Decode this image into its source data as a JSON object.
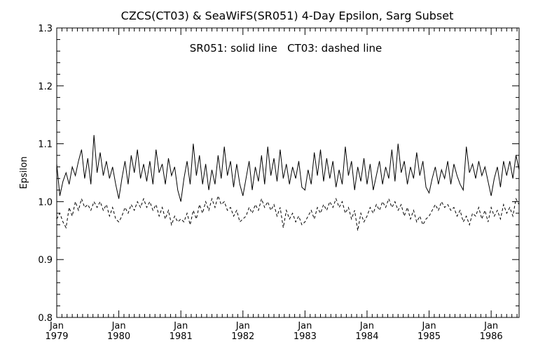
{
  "chart_data": {
    "type": "line",
    "title": "CZCS(CT03) & SeaWiFS(SR051) 4-Day Epsilon, Sarg Subset",
    "legend_text": "SR051: solid line   CT03: dashed line",
    "xlabel": "",
    "ylabel": "Epsilon",
    "xlim": [
      1979.0,
      1986.45
    ],
    "ylim": [
      0.8,
      1.3
    ],
    "y_ticks": [
      "0.8",
      "0.9",
      "1.0",
      "1.1",
      "1.2",
      "1.3"
    ],
    "x_ticks": [
      {
        "month": "Jan",
        "year": "1979"
      },
      {
        "month": "Jan",
        "year": "1980"
      },
      {
        "month": "Jan",
        "year": "1981"
      },
      {
        "month": "Jan",
        "year": "1982"
      },
      {
        "month": "Jan",
        "year": "1983"
      },
      {
        "month": "Jan",
        "year": "1984"
      },
      {
        "month": "Jan",
        "year": "1985"
      },
      {
        "month": "Jan",
        "year": "1986"
      }
    ],
    "x_tick_values": [
      1979,
      1980,
      1981,
      1982,
      1983,
      1984,
      1985,
      1986
    ],
    "grid": false,
    "series": [
      {
        "name": "SR051",
        "style": "solid",
        "x": [
          1979.0,
          1979.05,
          1979.1,
          1979.15,
          1979.2,
          1979.25,
          1979.3,
          1979.35,
          1979.4,
          1979.45,
          1979.5,
          1979.55,
          1979.6,
          1979.65,
          1979.7,
          1979.75,
          1979.8,
          1979.85,
          1979.9,
          1979.95,
          1980.0,
          1980.05,
          1980.1,
          1980.15,
          1980.2,
          1980.25,
          1980.3,
          1980.35,
          1980.4,
          1980.45,
          1980.5,
          1980.55,
          1980.6,
          1980.65,
          1980.7,
          1980.75,
          1980.8,
          1980.85,
          1980.9,
          1980.95,
          1981.0,
          1981.05,
          1981.1,
          1981.15,
          1981.2,
          1981.25,
          1981.3,
          1981.35,
          1981.4,
          1981.45,
          1981.5,
          1981.55,
          1981.6,
          1981.65,
          1981.7,
          1981.75,
          1981.8,
          1981.85,
          1981.9,
          1981.95,
          1982.0,
          1982.05,
          1982.1,
          1982.15,
          1982.2,
          1982.25,
          1982.3,
          1982.35,
          1982.4,
          1982.45,
          1982.5,
          1982.55,
          1982.6,
          1982.65,
          1982.7,
          1982.75,
          1982.8,
          1982.85,
          1982.9,
          1982.95,
          1983.0,
          1983.05,
          1983.1,
          1983.15,
          1983.2,
          1983.25,
          1983.3,
          1983.35,
          1983.4,
          1983.45,
          1983.5,
          1983.55,
          1983.6,
          1983.65,
          1983.7,
          1983.75,
          1983.8,
          1983.85,
          1983.9,
          1983.95,
          1984.0,
          1984.05,
          1984.1,
          1984.15,
          1984.2,
          1984.25,
          1984.3,
          1984.35,
          1984.4,
          1984.45,
          1984.5,
          1984.55,
          1984.6,
          1984.65,
          1984.7,
          1984.75,
          1984.8,
          1984.85,
          1984.9,
          1984.95,
          1985.0,
          1985.05,
          1985.1,
          1985.15,
          1985.2,
          1985.25,
          1985.3,
          1985.35,
          1985.4,
          1985.45,
          1985.5,
          1985.55,
          1985.6,
          1985.65,
          1985.7,
          1985.75,
          1985.8,
          1985.85,
          1985.9,
          1985.95,
          1986.0,
          1986.05,
          1986.1,
          1986.15,
          1986.2,
          1986.25,
          1986.3,
          1986.35,
          1986.4,
          1986.45
        ],
        "y": [
          1.065,
          1.01,
          1.035,
          1.05,
          1.03,
          1.06,
          1.045,
          1.07,
          1.09,
          1.04,
          1.075,
          1.03,
          1.115,
          1.05,
          1.085,
          1.045,
          1.07,
          1.04,
          1.06,
          1.03,
          1.005,
          1.04,
          1.07,
          1.03,
          1.08,
          1.05,
          1.09,
          1.04,
          1.065,
          1.035,
          1.07,
          1.03,
          1.09,
          1.05,
          1.065,
          1.03,
          1.075,
          1.045,
          1.06,
          1.02,
          1.0,
          1.04,
          1.07,
          1.03,
          1.1,
          1.045,
          1.08,
          1.03,
          1.065,
          1.02,
          1.055,
          1.03,
          1.08,
          1.04,
          1.095,
          1.045,
          1.07,
          1.025,
          1.065,
          1.03,
          1.01,
          1.04,
          1.07,
          1.02,
          1.06,
          1.035,
          1.08,
          1.03,
          1.095,
          1.045,
          1.075,
          1.035,
          1.09,
          1.04,
          1.065,
          1.03,
          1.06,
          1.04,
          1.07,
          1.025,
          1.02,
          1.055,
          1.03,
          1.085,
          1.045,
          1.09,
          1.035,
          1.075,
          1.04,
          1.07,
          1.025,
          1.055,
          1.03,
          1.095,
          1.045,
          1.07,
          1.02,
          1.06,
          1.035,
          1.075,
          1.03,
          1.065,
          1.02,
          1.045,
          1.07,
          1.03,
          1.06,
          1.04,
          1.09,
          1.035,
          1.1,
          1.05,
          1.07,
          1.03,
          1.06,
          1.04,
          1.085,
          1.045,
          1.07,
          1.025,
          1.015,
          1.04,
          1.06,
          1.03,
          1.055,
          1.04,
          1.07,
          1.03,
          1.065,
          1.045,
          1.03,
          1.02,
          1.095,
          1.05,
          1.065,
          1.04,
          1.07,
          1.045,
          1.06,
          1.035,
          1.01,
          1.04,
          1.06,
          1.025,
          1.07,
          1.045,
          1.07,
          1.04,
          1.08,
          1.055
        ]
      },
      {
        "name": "CT03",
        "style": "dashed",
        "x": [
          1979.0,
          1979.05,
          1979.1,
          1979.15,
          1979.2,
          1979.25,
          1979.3,
          1979.35,
          1979.4,
          1979.45,
          1979.5,
          1979.55,
          1979.6,
          1979.65,
          1979.7,
          1979.75,
          1979.8,
          1979.85,
          1979.9,
          1979.95,
          1980.0,
          1980.05,
          1980.1,
          1980.15,
          1980.2,
          1980.25,
          1980.3,
          1980.35,
          1980.4,
          1980.45,
          1980.5,
          1980.55,
          1980.6,
          1980.65,
          1980.7,
          1980.75,
          1980.8,
          1980.85,
          1980.9,
          1980.95,
          1981.0,
          1981.05,
          1981.1,
          1981.15,
          1981.2,
          1981.25,
          1981.3,
          1981.35,
          1981.4,
          1981.45,
          1981.5,
          1981.55,
          1981.6,
          1981.65,
          1981.7,
          1981.75,
          1981.8,
          1981.85,
          1981.9,
          1981.95,
          1982.0,
          1982.05,
          1982.1,
          1982.15,
          1982.2,
          1982.25,
          1982.3,
          1982.35,
          1982.4,
          1982.45,
          1982.5,
          1982.55,
          1982.6,
          1982.65,
          1982.7,
          1982.75,
          1982.8,
          1982.85,
          1982.9,
          1982.95,
          1983.0,
          1983.05,
          1983.1,
          1983.15,
          1983.2,
          1983.25,
          1983.3,
          1983.35,
          1983.4,
          1983.45,
          1983.5,
          1983.55,
          1983.6,
          1983.65,
          1983.7,
          1983.75,
          1983.8,
          1983.85,
          1983.9,
          1983.95,
          1984.0,
          1984.05,
          1984.1,
          1984.15,
          1984.2,
          1984.25,
          1984.3,
          1984.35,
          1984.4,
          1984.45,
          1984.5,
          1984.55,
          1984.6,
          1984.65,
          1984.7,
          1984.75,
          1984.8,
          1984.85,
          1984.9,
          1984.95,
          1985.0,
          1985.05,
          1985.1,
          1985.15,
          1985.2,
          1985.25,
          1985.3,
          1985.35,
          1985.4,
          1985.45,
          1985.5,
          1985.55,
          1985.6,
          1985.65,
          1985.7,
          1985.75,
          1985.8,
          1985.85,
          1985.9,
          1985.95,
          1986.0,
          1986.05,
          1986.1,
          1986.15,
          1986.2,
          1986.25,
          1986.3,
          1986.35,
          1986.4,
          1986.45
        ],
        "y": [
          0.97,
          0.98,
          0.965,
          0.955,
          0.99,
          0.975,
          1.0,
          0.985,
          1.005,
          0.99,
          0.995,
          0.985,
          1.0,
          0.99,
          1.0,
          0.985,
          0.995,
          0.975,
          0.99,
          0.97,
          0.965,
          0.975,
          0.99,
          0.98,
          0.995,
          0.985,
          1.0,
          0.99,
          1.005,
          0.99,
          1.0,
          0.985,
          0.995,
          0.975,
          0.99,
          0.97,
          0.985,
          0.96,
          0.975,
          0.965,
          0.97,
          0.965,
          0.98,
          0.96,
          0.985,
          0.97,
          0.995,
          0.98,
          1.0,
          0.985,
          1.005,
          0.99,
          1.01,
          0.995,
          1.0,
          0.985,
          0.99,
          0.975,
          0.985,
          0.965,
          0.97,
          0.975,
          0.99,
          0.98,
          0.995,
          0.985,
          1.005,
          0.99,
          1.0,
          0.985,
          0.995,
          0.975,
          0.99,
          0.955,
          0.985,
          0.97,
          0.98,
          0.965,
          0.975,
          0.96,
          0.965,
          0.975,
          0.985,
          0.97,
          0.99,
          0.98,
          0.995,
          0.985,
          1.0,
          0.99,
          1.005,
          0.99,
          1.0,
          0.98,
          0.99,
          0.97,
          0.985,
          0.95,
          0.98,
          0.965,
          0.975,
          0.99,
          0.98,
          0.995,
          0.985,
          1.0,
          0.99,
          1.005,
          0.99,
          1.0,
          0.985,
          0.995,
          0.975,
          0.99,
          0.97,
          0.985,
          0.965,
          0.975,
          0.96,
          0.97,
          0.975,
          0.985,
          0.995,
          0.985,
          1.0,
          0.99,
          0.995,
          0.985,
          0.99,
          0.975,
          0.985,
          0.965,
          0.975,
          0.96,
          0.98,
          0.975,
          0.99,
          0.97,
          0.985,
          0.965,
          0.99,
          0.975,
          0.985,
          0.97,
          0.995,
          0.98,
          0.99,
          0.975,
          1.005,
          0.995
        ]
      }
    ]
  }
}
